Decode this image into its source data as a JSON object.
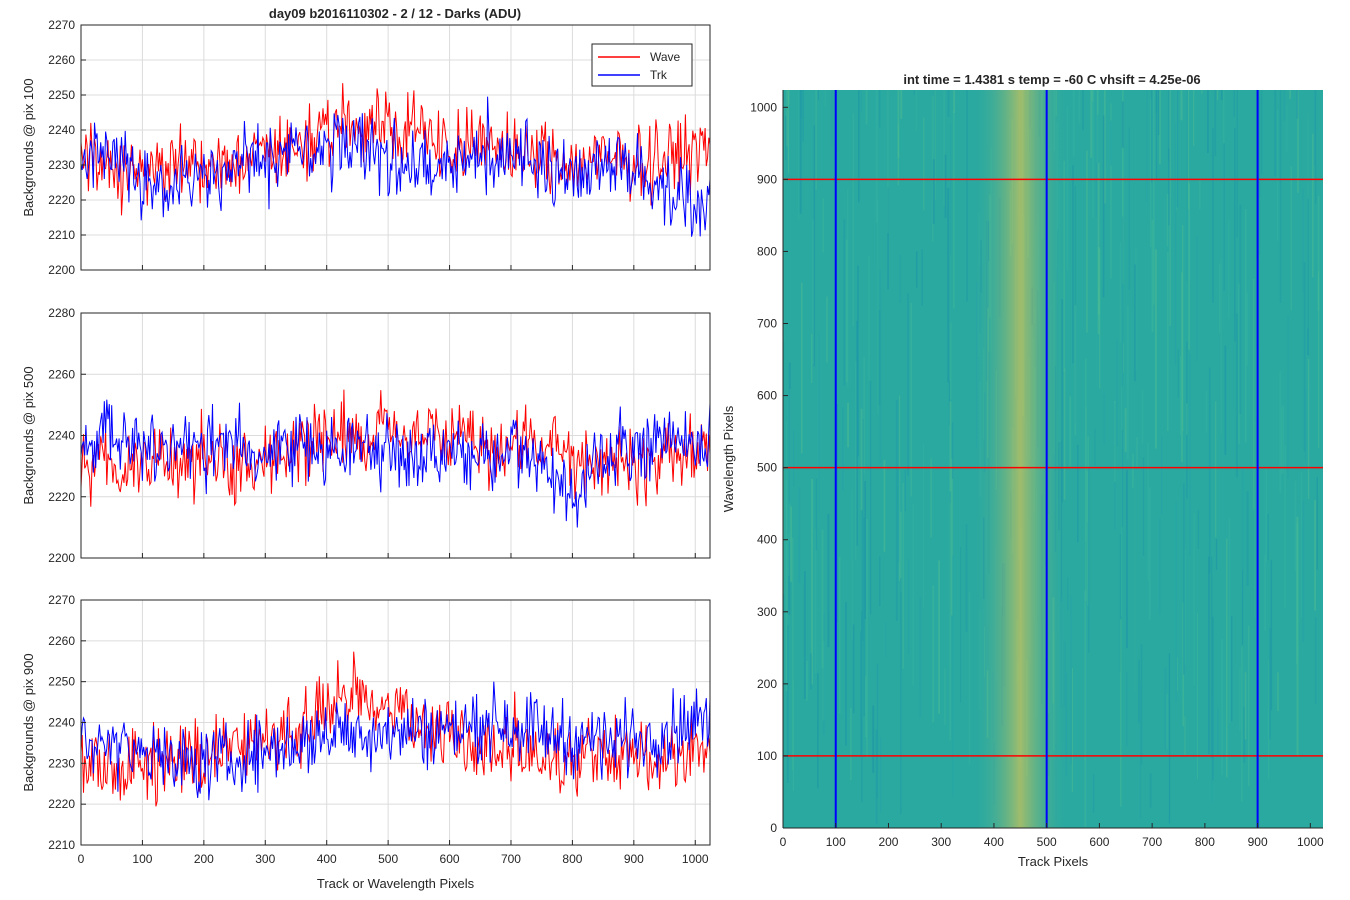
{
  "figure": {
    "left_title": "day09 b2016110302 - 2 / 12 - Darks (ADU)",
    "right_title": "int time = 1.4381 s    temp = -60 C    vhsift = 4.25e-06"
  },
  "chart_data": [
    {
      "type": "line",
      "panel": "top-left",
      "title": "day09 b2016110302 - 2 / 12 - Darks (ADU)",
      "xlabel": "",
      "ylabel": "Backgrounds @ pix 100",
      "xlim": [
        0,
        1024
      ],
      "ylim": [
        2200,
        2270
      ],
      "xticks": [
        0,
        100,
        200,
        300,
        400,
        500,
        600,
        700,
        800,
        900,
        1000
      ],
      "yticks": [
        2200,
        2210,
        2220,
        2230,
        2240,
        2250,
        2260,
        2270
      ],
      "show_xticklabels": false,
      "grid": true,
      "legend": {
        "placement": "top-right",
        "entries": [
          "Wave",
          "Trk"
        ]
      },
      "series": [
        {
          "name": "Wave",
          "color": "#ff0000",
          "x": [
            0,
            50,
            100,
            150,
            200,
            250,
            300,
            350,
            400,
            450,
            500,
            550,
            600,
            650,
            700,
            750,
            800,
            850,
            900,
            950,
            1000,
            1024
          ],
          "values": [
            2232,
            2230,
            2228,
            2231,
            2229,
            2230,
            2232,
            2236,
            2238,
            2242,
            2242,
            2240,
            2236,
            2235,
            2234,
            2232,
            2230,
            2231,
            2231,
            2232,
            2234,
            2234
          ]
        },
        {
          "name": "Trk",
          "color": "#0000ff",
          "x": [
            0,
            50,
            100,
            150,
            200,
            250,
            300,
            350,
            400,
            450,
            500,
            550,
            600,
            650,
            700,
            750,
            800,
            850,
            900,
            950,
            1000,
            1024
          ],
          "values": [
            2232,
            2236,
            2222,
            2224,
            2228,
            2230,
            2232,
            2232,
            2234,
            2236,
            2232,
            2230,
            2230,
            2232,
            2233,
            2230,
            2228,
            2230,
            2228,
            2224,
            2218,
            2218
          ]
        }
      ]
    },
    {
      "type": "line",
      "panel": "middle-left",
      "xlabel": "",
      "ylabel": "Backgrounds @ pix 500",
      "xlim": [
        0,
        1024
      ],
      "ylim": [
        2200,
        2280
      ],
      "xticks": [
        0,
        100,
        200,
        300,
        400,
        500,
        600,
        700,
        800,
        900,
        1000
      ],
      "yticks": [
        2200,
        2220,
        2240,
        2260,
        2280
      ],
      "show_xticklabels": false,
      "grid": true,
      "series": [
        {
          "name": "Wave",
          "color": "#ff0000",
          "x": [
            0,
            50,
            100,
            150,
            200,
            250,
            300,
            350,
            400,
            450,
            500,
            550,
            600,
            650,
            700,
            750,
            800,
            850,
            900,
            950,
            1000,
            1024
          ],
          "values": [
            2230,
            2230,
            2230,
            2230,
            2231,
            2232,
            2234,
            2236,
            2240,
            2242,
            2241,
            2240,
            2238,
            2236,
            2236,
            2236,
            2234,
            2232,
            2232,
            2232,
            2234,
            2234
          ]
        },
        {
          "name": "Trk",
          "color": "#0000ff",
          "x": [
            0,
            50,
            100,
            150,
            200,
            250,
            300,
            350,
            400,
            450,
            500,
            550,
            600,
            650,
            700,
            750,
            800,
            850,
            900,
            950,
            1000,
            1024
          ],
          "values": [
            2240,
            2242,
            2236,
            2236,
            2235,
            2236,
            2236,
            2236,
            2236,
            2236,
            2235,
            2234,
            2234,
            2234,
            2234,
            2232,
            2220,
            2234,
            2235,
            2236,
            2238,
            2238
          ]
        }
      ]
    },
    {
      "type": "line",
      "panel": "bottom-left",
      "xlabel": "Track or Wavelength Pixels",
      "ylabel": "Backgrounds @ pix 900",
      "xlim": [
        0,
        1024
      ],
      "ylim": [
        2210,
        2270
      ],
      "xticks": [
        0,
        100,
        200,
        300,
        400,
        500,
        600,
        700,
        800,
        900,
        1000
      ],
      "yticks": [
        2210,
        2220,
        2230,
        2240,
        2250,
        2260,
        2270
      ],
      "show_xticklabels": true,
      "grid": true,
      "series": [
        {
          "name": "Wave",
          "color": "#ff0000",
          "x": [
            0,
            50,
            100,
            150,
            200,
            250,
            300,
            350,
            400,
            450,
            500,
            550,
            600,
            650,
            700,
            750,
            800,
            850,
            900,
            950,
            1000,
            1024
          ],
          "values": [
            2230,
            2230,
            2230,
            2231,
            2232,
            2233,
            2235,
            2238,
            2244,
            2246,
            2245,
            2240,
            2236,
            2234,
            2232,
            2232,
            2231,
            2231,
            2232,
            2232,
            2233,
            2233
          ]
        },
        {
          "name": "Trk",
          "color": "#0000ff",
          "x": [
            0,
            50,
            100,
            150,
            200,
            250,
            300,
            350,
            400,
            450,
            500,
            550,
            600,
            650,
            700,
            750,
            800,
            850,
            900,
            950,
            1000,
            1024
          ],
          "values": [
            2234,
            2234,
            2232,
            2230,
            2230,
            2231,
            2233,
            2235,
            2237,
            2238,
            2238,
            2238,
            2238,
            2240,
            2240,
            2238,
            2236,
            2236,
            2236,
            2238,
            2240,
            2240
          ]
        }
      ]
    },
    {
      "type": "heatmap",
      "panel": "right",
      "title": "int time = 1.4381 s    temp = -60 C    vhsift = 4.25e-06",
      "xlabel": "Track Pixels",
      "ylabel": "Wavelength Pixels",
      "xlim": [
        0,
        1024
      ],
      "ylim": [
        0,
        1024
      ],
      "xticks": [
        0,
        100,
        200,
        300,
        400,
        500,
        600,
        700,
        800,
        900,
        1000
      ],
      "yticks": [
        0,
        100,
        200,
        300,
        400,
        500,
        600,
        700,
        800,
        900,
        1000
      ],
      "colormap": "parula",
      "base_color": "#2aa9a0",
      "bright_band": {
        "center_x": 450,
        "half_width": 70,
        "color": "#c8c35a"
      },
      "overlay_vertical_lines": {
        "color": "#0000ff",
        "x": [
          100,
          500,
          900
        ]
      },
      "overlay_horizontal_lines": {
        "color": "#ff0000",
        "y": [
          100,
          500,
          900
        ]
      }
    }
  ]
}
